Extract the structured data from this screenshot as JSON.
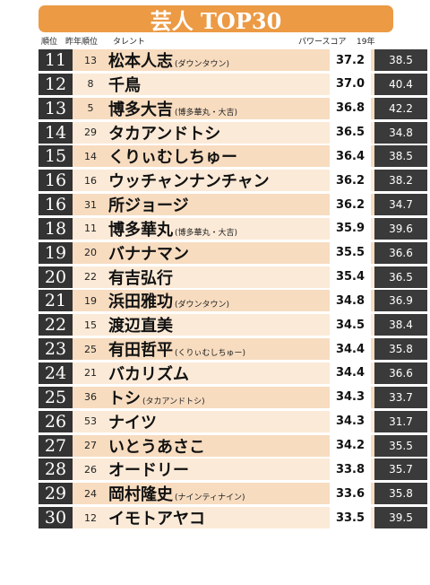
{
  "title": "芸人 TOP30",
  "headers": {
    "rank": "順位",
    "prev_rank": "昨年順位",
    "talent": "タレント",
    "power_score": "パワースコア",
    "last_year": "19年"
  },
  "rows": [
    {
      "rank": "11",
      "prev": "13",
      "name": "松本人志",
      "note": "(ダウンタウン)",
      "score": "37.2",
      "last": "38.5"
    },
    {
      "rank": "12",
      "prev": "8",
      "name": "千鳥",
      "note": "",
      "score": "37.0",
      "last": "40.4"
    },
    {
      "rank": "13",
      "prev": "5",
      "name": "博多大吉",
      "note": "(博多華丸・大吉)",
      "score": "36.8",
      "last": "42.2"
    },
    {
      "rank": "14",
      "prev": "29",
      "name": "タカアンドトシ",
      "note": "",
      "score": "36.5",
      "last": "34.8"
    },
    {
      "rank": "15",
      "prev": "14",
      "name": "くりぃむしちゅー",
      "note": "",
      "score": "36.4",
      "last": "38.5"
    },
    {
      "rank": "16",
      "prev": "16",
      "name": "ウッチャンナンチャン",
      "note": "",
      "score": "36.2",
      "last": "38.2"
    },
    {
      "rank": "16",
      "prev": "31",
      "name": "所ジョージ",
      "note": "",
      "score": "36.2",
      "last": "34.7"
    },
    {
      "rank": "18",
      "prev": "11",
      "name": "博多華丸",
      "note": "(博多華丸・大吉)",
      "score": "35.9",
      "last": "39.6"
    },
    {
      "rank": "19",
      "prev": "20",
      "name": "バナナマン",
      "note": "",
      "score": "35.5",
      "last": "36.6"
    },
    {
      "rank": "20",
      "prev": "22",
      "name": "有吉弘行",
      "note": "",
      "score": "35.4",
      "last": "36.5"
    },
    {
      "rank": "21",
      "prev": "19",
      "name": "浜田雅功",
      "note": "(ダウンタウン)",
      "score": "34.8",
      "last": "36.9"
    },
    {
      "rank": "22",
      "prev": "15",
      "name": "渡辺直美",
      "note": "",
      "score": "34.5",
      "last": "38.4"
    },
    {
      "rank": "23",
      "prev": "25",
      "name": "有田哲平",
      "note": "(くりぃむしちゅー)",
      "score": "34.4",
      "last": "35.8"
    },
    {
      "rank": "24",
      "prev": "21",
      "name": "バカリズム",
      "note": "",
      "score": "34.4",
      "last": "36.6"
    },
    {
      "rank": "25",
      "prev": "36",
      "name": "トシ",
      "note": "(タカアンドトシ)",
      "score": "34.3",
      "last": "33.7"
    },
    {
      "rank": "26",
      "prev": "53",
      "name": "ナイツ",
      "note": "",
      "score": "34.3",
      "last": "31.7"
    },
    {
      "rank": "27",
      "prev": "27",
      "name": "いとうあさこ",
      "note": "",
      "score": "34.2",
      "last": "35.5"
    },
    {
      "rank": "28",
      "prev": "26",
      "name": "オードリー",
      "note": "",
      "score": "33.8",
      "last": "35.7"
    },
    {
      "rank": "29",
      "prev": "24",
      "name": "岡村隆史",
      "note": "(ナインティナイン)",
      "score": "33.6",
      "last": "35.8"
    },
    {
      "rank": "30",
      "prev": "12",
      "name": "イモトアヤコ",
      "note": "",
      "score": "33.5",
      "last": "39.5"
    }
  ]
}
